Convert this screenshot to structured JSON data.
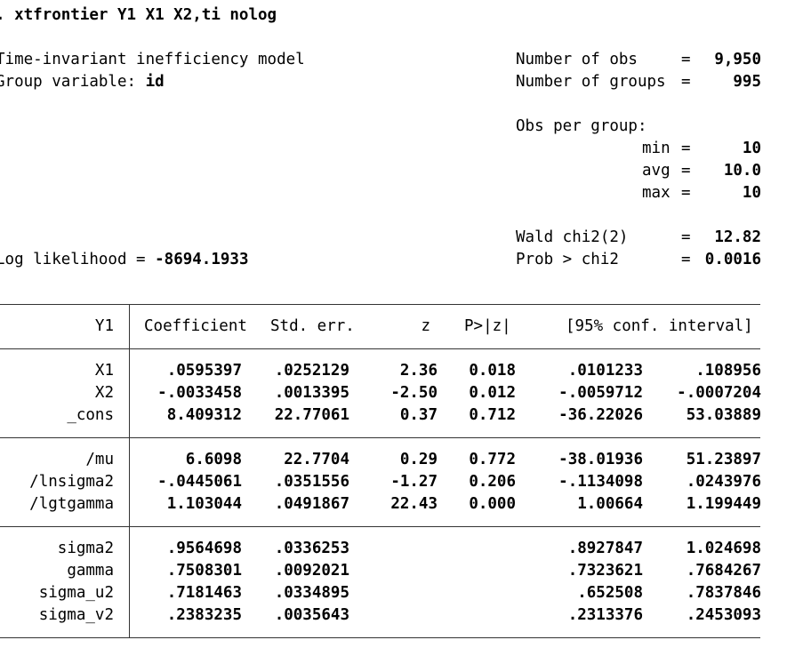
{
  "command": ". xtfrontier Y1 X1 X2,ti nolog",
  "header": {
    "model_title": "Time-invariant inefficiency model",
    "group_label": "Group variable: ",
    "group_var": "id",
    "loglik_label": "Log likelihood = ",
    "loglik_value": "-8694.1933",
    "nobs_label": "Number of obs",
    "nobs_value": "9,950",
    "ngroups_label": "Number of groups",
    "ngroups_value": "995",
    "obs_per_group_label": "Obs per group:",
    "min_label": "min",
    "min_value": "10",
    "avg_label": "avg",
    "avg_value": "10.0",
    "max_label": "max",
    "max_value": "10",
    "wald_label": "Wald chi2(2)",
    "wald_value": "12.82",
    "prob_label": "Prob > chi2",
    "prob_value": "0.0016",
    "eq": "="
  },
  "table": {
    "columns": [
      "Y1",
      "Coefficient",
      "Std. err.",
      "z",
      "P>|z|",
      "[95% conf. interval]"
    ],
    "rows": [
      {
        "name": "X1",
        "coef": ".0595397",
        "se": ".0252129",
        "z": "2.36",
        "p": "0.018",
        "lo": ".0101233",
        "hi": ".108956"
      },
      {
        "name": "X2",
        "coef": "-.0033458",
        "se": ".0013395",
        "z": "-2.50",
        "p": "0.012",
        "lo": "-.0059712",
        "hi": "-.0007204"
      },
      {
        "name": "_cons",
        "coef": "8.409312",
        "se": "22.77061",
        "z": "0.37",
        "p": "0.712",
        "lo": "-36.22026",
        "hi": "53.03889"
      },
      {
        "name": "/mu",
        "coef": "6.6098",
        "se": "22.7704",
        "z": "0.29",
        "p": "0.772",
        "lo": "-38.01936",
        "hi": "51.23897"
      },
      {
        "name": "/lnsigma2",
        "coef": "-.0445061",
        "se": ".0351556",
        "z": "-1.27",
        "p": "0.206",
        "lo": "-.1134098",
        "hi": ".0243976"
      },
      {
        "name": "/lgtgamma",
        "coef": "1.103044",
        "se": ".0491867",
        "z": "22.43",
        "p": "0.000",
        "lo": "1.00664",
        "hi": "1.199449"
      },
      {
        "name": "sigma2",
        "coef": ".9564698",
        "se": ".0336253",
        "z": "",
        "p": "",
        "lo": ".8927847",
        "hi": "1.024698"
      },
      {
        "name": "gamma",
        "coef": ".7508301",
        "se": ".0092021",
        "z": "",
        "p": "",
        "lo": ".7323621",
        "hi": ".7684267"
      },
      {
        "name": "sigma_u2",
        "coef": ".7181463",
        "se": ".0334895",
        "z": "",
        "p": "",
        "lo": ".652508",
        "hi": ".7837846"
      },
      {
        "name": "sigma_v2",
        "coef": ".2383235",
        "se": ".0035643",
        "z": "",
        "p": "",
        "lo": ".2313376",
        "hi": ".2453093"
      }
    ]
  }
}
